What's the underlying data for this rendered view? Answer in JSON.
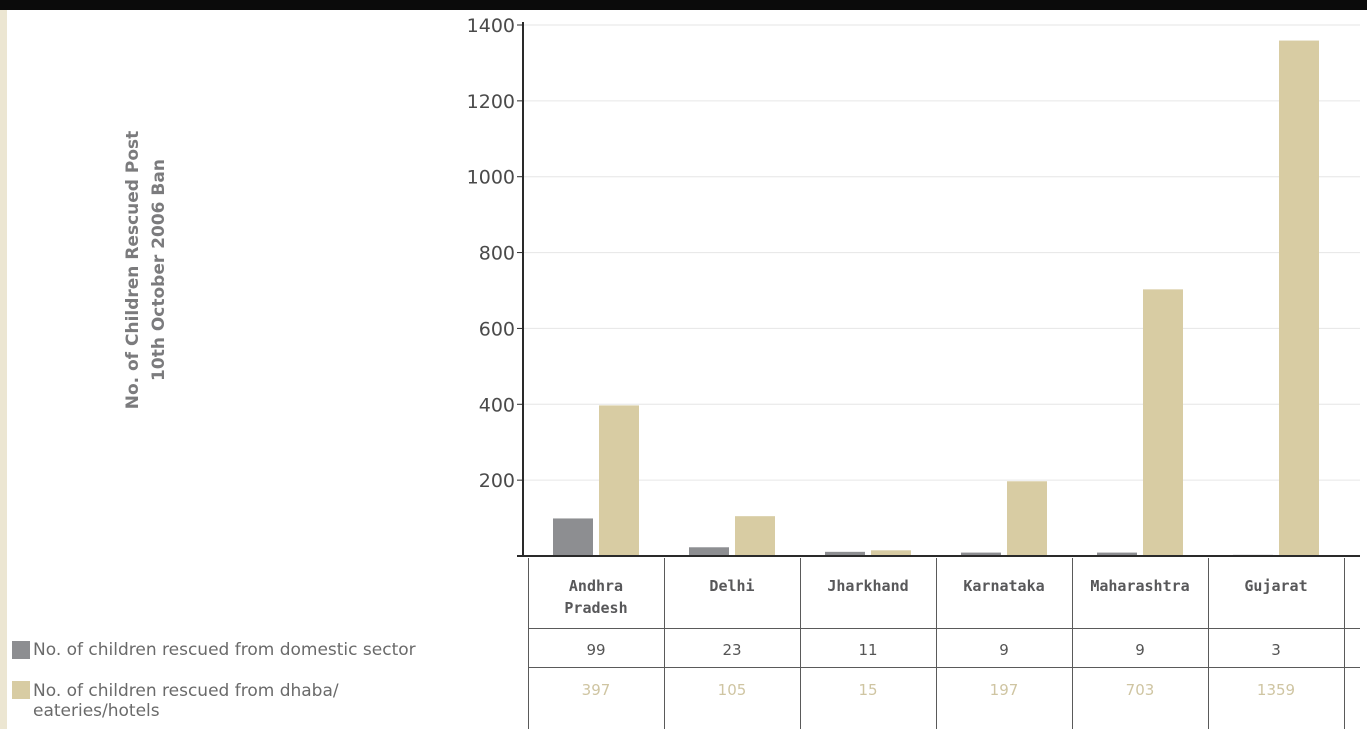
{
  "y_axis_title": {
    "line1": "No. of Children Rescued Post",
    "line2": "10th October 2006  Ban"
  },
  "colors": {
    "domestic": "#8d8e91",
    "dhaba": "#d8cca3",
    "grid": "#e6e6e6",
    "axis": "#2a2a2a"
  },
  "chart_data": {
    "type": "bar",
    "categories": [
      "Andhra Pradesh",
      "Delhi",
      "Jharkhand",
      "Karnataka",
      "Maharashtra",
      "Gujarat"
    ],
    "category_lines": [
      [
        "Andhra",
        "Pradesh"
      ],
      [
        "Delhi"
      ],
      [
        "Jharkhand"
      ],
      [
        "Karnataka"
      ],
      [
        "Maharashtra"
      ],
      [
        "Gujarat"
      ]
    ],
    "series": [
      {
        "name": "No. of children rescued from domestic sector",
        "values": [
          99,
          23,
          11,
          9,
          9,
          3
        ]
      },
      {
        "name": "No. of children rescued from dhaba/ eateries/hotels",
        "values": [
          397,
          105,
          15,
          197,
          703,
          1359
        ]
      }
    ],
    "series_label_lines": [
      [
        "No. of children rescued from domestic sector"
      ],
      [
        "No. of children rescued from dhaba/",
        "eateries/hotels"
      ]
    ],
    "yticks": [
      200,
      400,
      600,
      800,
      1000,
      1200,
      1400
    ],
    "ylim": [
      0,
      1400
    ],
    "grid": true,
    "legend": "data table below chart",
    "xlabel": "",
    "ylabel": "No. of Children Rescued Post 10th October 2006  Ban"
  }
}
